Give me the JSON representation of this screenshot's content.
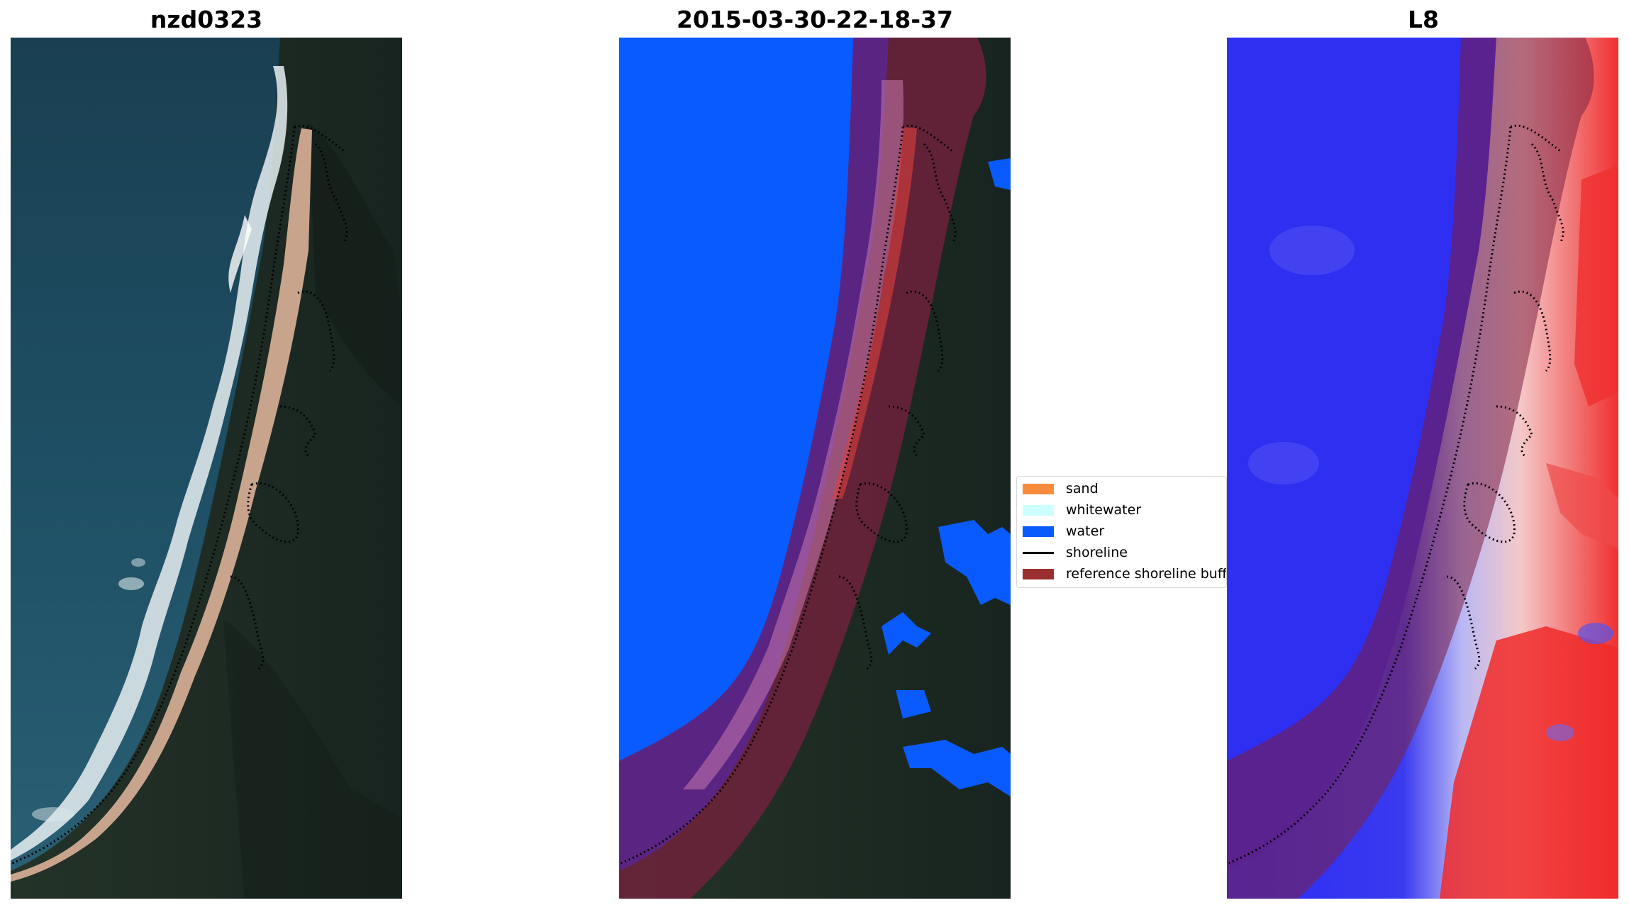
{
  "panels": {
    "left_title": "nzd0323",
    "middle_title": "2015-03-30-22-18-37",
    "right_title": "L8"
  },
  "legend": {
    "items": [
      {
        "label": "sand",
        "color": "#f98b3c",
        "kind": "patch"
      },
      {
        "label": "whitewater",
        "color": "#ccffff",
        "kind": "patch"
      },
      {
        "label": "water",
        "color": "#0a5bff",
        "kind": "patch"
      },
      {
        "label": "shoreline",
        "color": "#000000",
        "kind": "line"
      },
      {
        "label": "reference shoreline buffer",
        "color": "#9b2f2f",
        "kind": "patch"
      }
    ]
  },
  "colors": {
    "ocean": "#1b4e63",
    "land": "#1c2a26",
    "beach": "#c9a48c",
    "water_class": "#0a5bff",
    "buffer": "#7d2040",
    "index_blue": "#2a2af5",
    "index_red": "#f03030"
  }
}
